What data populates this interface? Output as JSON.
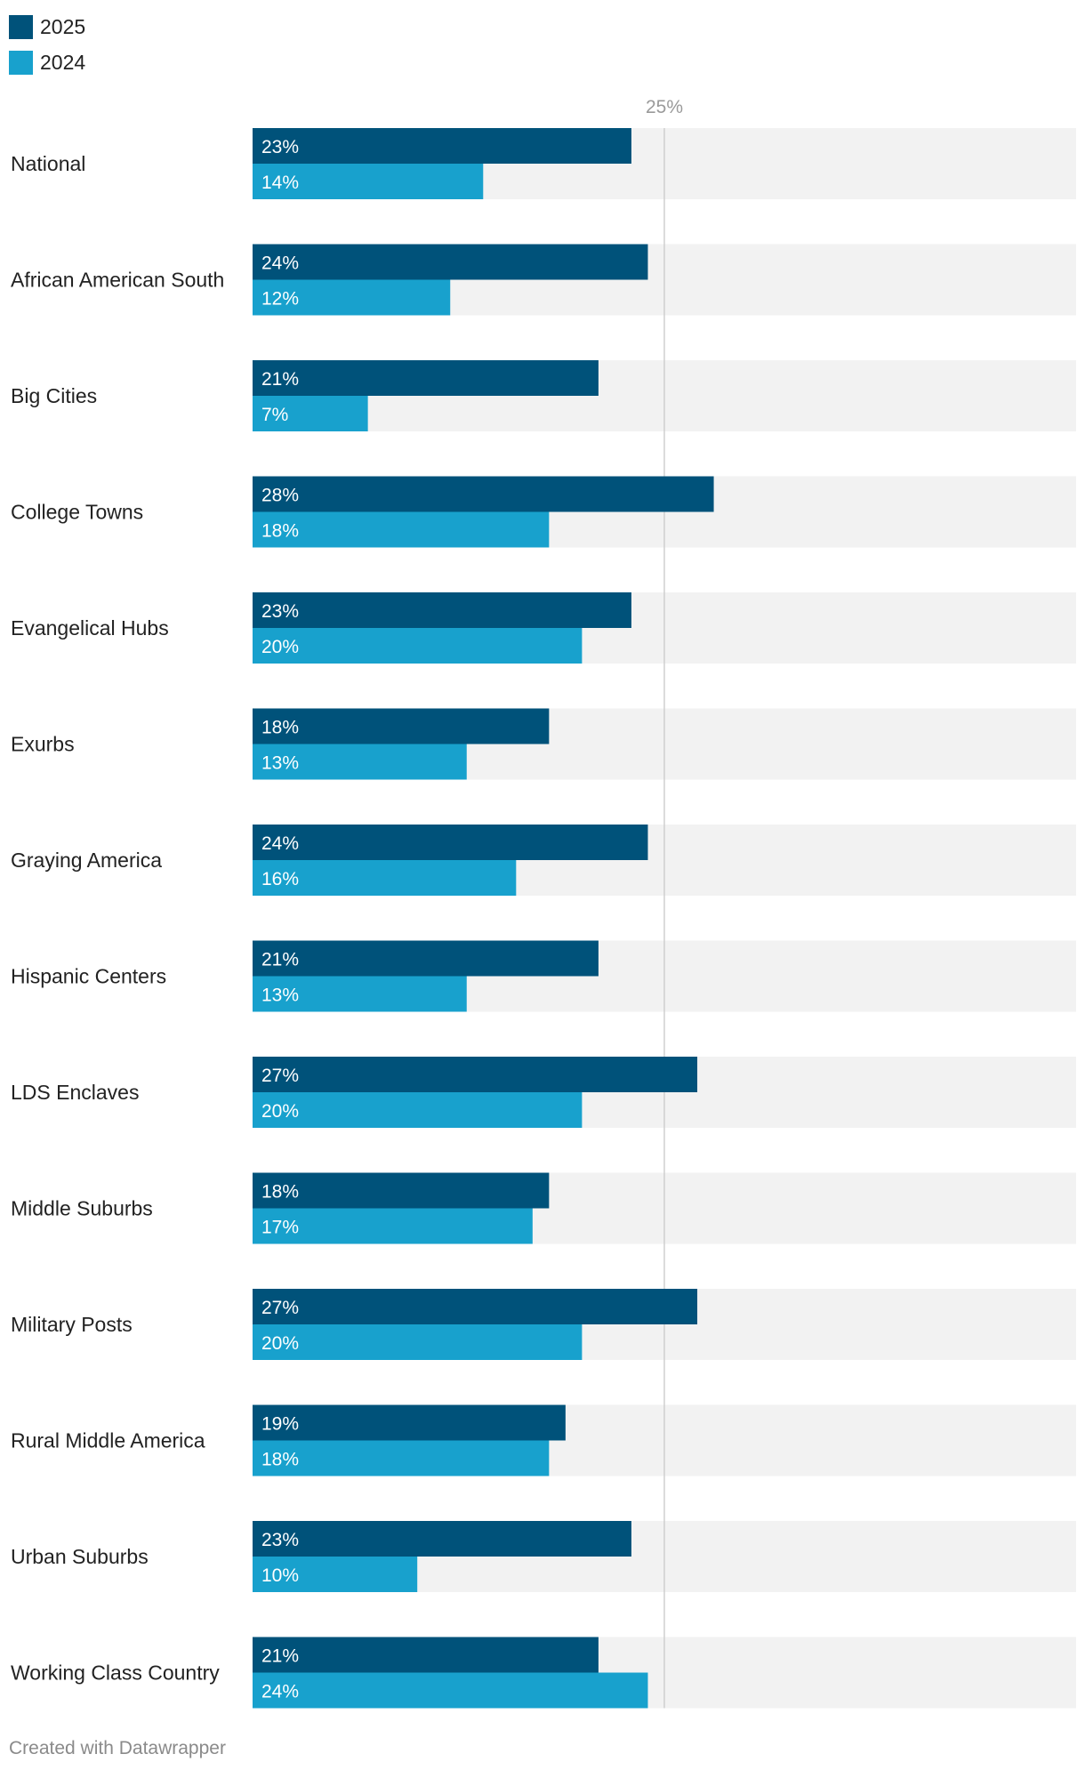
{
  "legend": {
    "items": [
      {
        "label": "2025",
        "color": "#00527a"
      },
      {
        "label": "2024",
        "color": "#18a1cd"
      }
    ]
  },
  "chart_data": {
    "type": "bar",
    "orientation": "horizontal",
    "grouped": true,
    "xlim": [
      0,
      50
    ],
    "reference_line": {
      "value": 25,
      "label": "25%"
    },
    "categories": [
      "National",
      "African American South",
      "Big Cities",
      "College Towns",
      "Evangelical Hubs",
      "Exurbs",
      "Graying America",
      "Hispanic Centers",
      "LDS Enclaves",
      "Middle Suburbs",
      "Military Posts",
      "Rural Middle America",
      "Urban Suburbs",
      "Working Class Country"
    ],
    "series": [
      {
        "name": "2025",
        "color": "#00527a",
        "values": [
          23,
          24,
          21,
          28,
          23,
          18,
          24,
          21,
          27,
          18,
          27,
          19,
          23,
          21
        ]
      },
      {
        "name": "2024",
        "color": "#18a1cd",
        "values": [
          14,
          12,
          7,
          18,
          20,
          13,
          16,
          13,
          20,
          17,
          20,
          18,
          10,
          24
        ]
      }
    ],
    "value_suffix": "%",
    "background_color": "#f2f2f2",
    "reference_line_color": "#d0d0d0"
  },
  "footer": {
    "text": "Created with Datawrapper"
  }
}
